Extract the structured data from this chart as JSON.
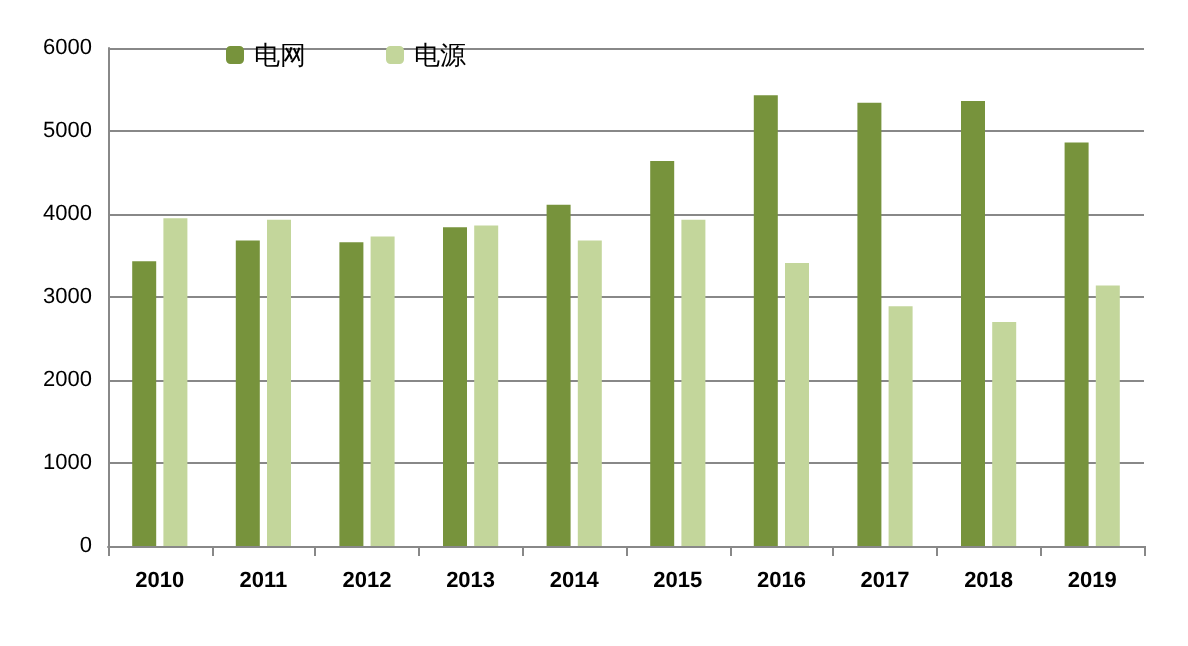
{
  "chart_data": {
    "type": "bar",
    "categories": [
      "2010",
      "2011",
      "2012",
      "2013",
      "2014",
      "2015",
      "2016",
      "2017",
      "2018",
      "2019"
    ],
    "series": [
      {
        "name": "电网",
        "color": "#77933c",
        "values": [
          3430,
          3680,
          3660,
          3840,
          4110,
          4640,
          5430,
          5340,
          5360,
          4860
        ]
      },
      {
        "name": "电源",
        "color": "#c3d69b",
        "values": [
          3950,
          3930,
          3730,
          3860,
          3680,
          3930,
          3410,
          2890,
          2700,
          3140
        ]
      }
    ],
    "ylim": [
      0,
      6000
    ],
    "yticks": [
      0,
      1000,
      2000,
      3000,
      4000,
      5000,
      6000
    ],
    "grid": "y",
    "legend": "top left"
  }
}
